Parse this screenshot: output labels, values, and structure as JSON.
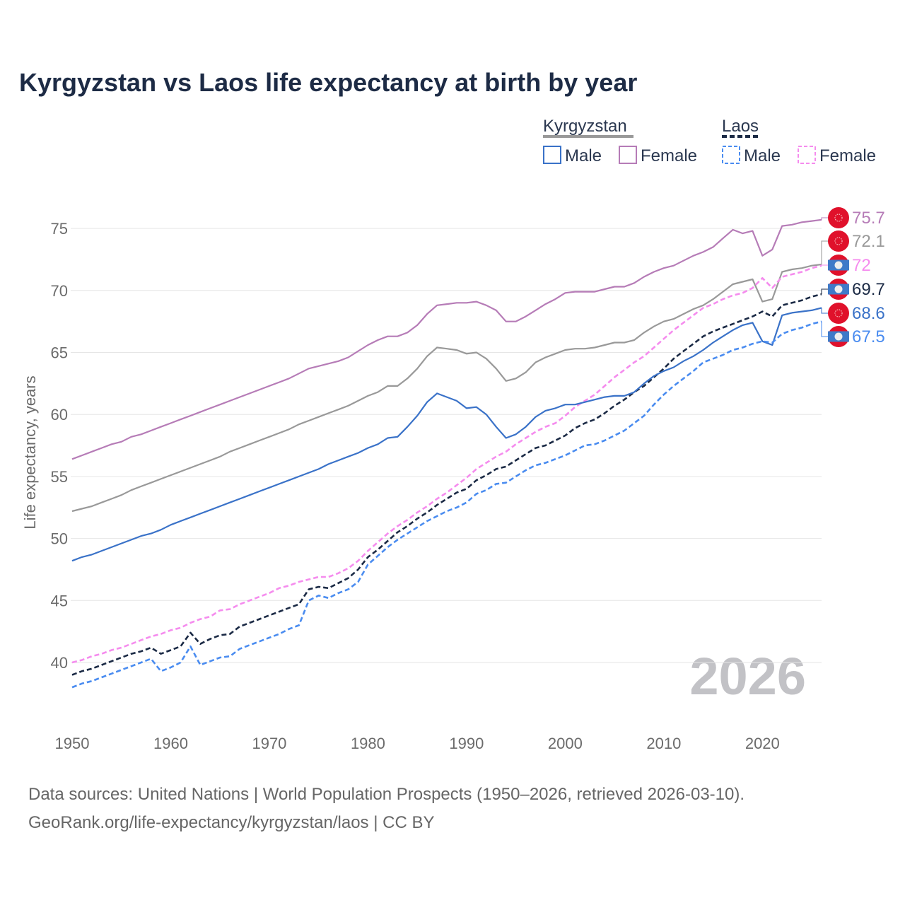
{
  "chart_data": {
    "type": "line",
    "title": "Kyrgyzstan vs Laos life expectancy at birth by year",
    "xlabel": "",
    "ylabel": "Life expectancy, years",
    "xlim": [
      1950,
      2026
    ],
    "ylim": [
      35.5,
      78
    ],
    "x_start": 1950,
    "x_ticks": [
      "1950",
      "1960",
      "1970",
      "1980",
      "1990",
      "2000",
      "2010",
      "2020"
    ],
    "y_ticks": [
      "40",
      "45",
      "50",
      "55",
      "60",
      "65",
      "70",
      "75"
    ],
    "grid": true,
    "watermark_year": "2026",
    "legend": {
      "placement": "top-right",
      "groups": [
        {
          "country": "Kyrgyzstan",
          "male": "Male",
          "female": "Female"
        },
        {
          "country": "Laos",
          "male": "Male",
          "female": "Female"
        }
      ]
    },
    "series": [
      {
        "name": "Kyrgyzstan Female",
        "color": "#b67cb7",
        "dashed": false,
        "flag": "kyrgyzstan",
        "end_label": "75.7",
        "values": [
          56.4,
          56.7,
          57.0,
          57.3,
          57.6,
          57.8,
          58.2,
          58.4,
          58.7,
          59.0,
          59.3,
          59.6,
          59.9,
          60.2,
          60.5,
          60.8,
          61.1,
          61.4,
          61.7,
          62.0,
          62.3,
          62.6,
          62.9,
          63.3,
          63.7,
          63.9,
          64.1,
          64.3,
          64.6,
          65.1,
          65.6,
          66.0,
          66.3,
          66.3,
          66.6,
          67.2,
          68.1,
          68.8,
          68.9,
          69.0,
          69.0,
          69.1,
          68.8,
          68.4,
          67.5,
          67.5,
          67.9,
          68.4,
          68.9,
          69.3,
          69.8,
          69.9,
          69.9,
          69.9,
          70.1,
          70.3,
          70.3,
          70.6,
          71.1,
          71.5,
          71.8,
          72.0,
          72.4,
          72.8,
          73.1,
          73.5,
          74.2,
          74.9,
          74.6,
          74.8,
          72.8,
          73.3,
          75.2,
          75.3,
          75.5,
          75.6,
          75.7
        ]
      },
      {
        "name": "Kyrgyzstan Total",
        "color": "#999999",
        "dashed": false,
        "flag": "kyrgyzstan",
        "end_label": "72.1",
        "values": [
          52.2,
          52.4,
          52.6,
          52.9,
          53.2,
          53.5,
          53.9,
          54.2,
          54.5,
          54.8,
          55.1,
          55.4,
          55.7,
          56.0,
          56.3,
          56.6,
          57.0,
          57.3,
          57.6,
          57.9,
          58.2,
          58.5,
          58.8,
          59.2,
          59.5,
          59.8,
          60.1,
          60.4,
          60.7,
          61.1,
          61.5,
          61.8,
          62.3,
          62.3,
          62.9,
          63.7,
          64.7,
          65.4,
          65.3,
          65.2,
          64.9,
          65.0,
          64.5,
          63.7,
          62.7,
          62.9,
          63.4,
          64.2,
          64.6,
          64.9,
          65.2,
          65.3,
          65.3,
          65.4,
          65.6,
          65.8,
          65.8,
          66.0,
          66.6,
          67.1,
          67.5,
          67.7,
          68.1,
          68.5,
          68.8,
          69.3,
          69.9,
          70.5,
          70.7,
          70.9,
          69.1,
          69.3,
          71.5,
          71.7,
          71.8,
          72.0,
          72.1
        ]
      },
      {
        "name": "Laos Female",
        "color": "#f58cee",
        "dashed": true,
        "flag": "laos",
        "end_label": "72",
        "values": [
          40.0,
          40.2,
          40.5,
          40.7,
          41.0,
          41.2,
          41.5,
          41.8,
          42.1,
          42.3,
          42.6,
          42.8,
          43.2,
          43.5,
          43.7,
          44.2,
          44.3,
          44.7,
          45.0,
          45.3,
          45.6,
          46.0,
          46.2,
          46.5,
          46.7,
          46.9,
          46.9,
          47.2,
          47.6,
          48.2,
          49.0,
          49.7,
          50.4,
          51.0,
          51.5,
          52.1,
          52.6,
          53.2,
          53.7,
          54.3,
          54.9,
          55.6,
          56.1,
          56.6,
          57.0,
          57.6,
          58.1,
          58.6,
          59.0,
          59.3,
          59.9,
          60.6,
          61.1,
          61.6,
          62.3,
          63.0,
          63.6,
          64.2,
          64.7,
          65.4,
          66.1,
          66.8,
          67.4,
          68.0,
          68.6,
          68.9,
          69.3,
          69.6,
          69.8,
          70.2,
          71.0,
          70.2,
          71.1,
          71.3,
          71.5,
          71.8,
          72.0
        ]
      },
      {
        "name": "Laos Total",
        "color": "#1b2a45",
        "dashed": true,
        "flag": "laos",
        "end_label": "69.7",
        "values": [
          39.0,
          39.3,
          39.5,
          39.8,
          40.1,
          40.4,
          40.7,
          40.9,
          41.2,
          40.7,
          41.0,
          41.3,
          42.4,
          41.5,
          41.9,
          42.2,
          42.3,
          42.9,
          43.2,
          43.5,
          43.8,
          44.1,
          44.4,
          44.7,
          45.9,
          46.1,
          46.0,
          46.4,
          46.8,
          47.5,
          48.5,
          49.1,
          49.8,
          50.5,
          51.0,
          51.6,
          52.1,
          52.7,
          53.2,
          53.7,
          54.0,
          54.7,
          55.1,
          55.6,
          55.8,
          56.3,
          56.8,
          57.3,
          57.5,
          57.9,
          58.3,
          58.9,
          59.3,
          59.6,
          60.1,
          60.7,
          61.2,
          61.8,
          62.3,
          63.0,
          63.7,
          64.5,
          65.1,
          65.7,
          66.3,
          66.7,
          67.0,
          67.3,
          67.6,
          67.9,
          68.3,
          67.9,
          68.8,
          69.0,
          69.2,
          69.5,
          69.7
        ]
      },
      {
        "name": "Kyrgyzstan Male",
        "color": "#3a72c8",
        "dashed": false,
        "flag": "kyrgyzstan",
        "end_label": "68.6",
        "values": [
          48.2,
          48.5,
          48.7,
          49.0,
          49.3,
          49.6,
          49.9,
          50.2,
          50.4,
          50.7,
          51.1,
          51.4,
          51.7,
          52.0,
          52.3,
          52.6,
          52.9,
          53.2,
          53.5,
          53.8,
          54.1,
          54.4,
          54.7,
          55.0,
          55.3,
          55.6,
          56.0,
          56.3,
          56.6,
          56.9,
          57.3,
          57.6,
          58.1,
          58.2,
          59.0,
          59.9,
          61.0,
          61.7,
          61.4,
          61.1,
          60.5,
          60.6,
          60.0,
          59.0,
          58.1,
          58.4,
          59.0,
          59.8,
          60.3,
          60.5,
          60.8,
          60.8,
          61.0,
          61.2,
          61.4,
          61.5,
          61.5,
          61.8,
          62.5,
          63.1,
          63.5,
          63.8,
          64.3,
          64.7,
          65.2,
          65.8,
          66.3,
          66.8,
          67.2,
          67.4,
          65.9,
          65.6,
          68.0,
          68.2,
          68.3,
          68.4,
          68.6
        ]
      },
      {
        "name": "Laos Male",
        "color": "#4a8cf0",
        "dashed": true,
        "flag": "laos",
        "end_label": "67.5",
        "values": [
          38.0,
          38.3,
          38.5,
          38.8,
          39.1,
          39.4,
          39.7,
          40.0,
          40.3,
          39.3,
          39.6,
          40.0,
          41.3,
          39.8,
          40.1,
          40.4,
          40.5,
          41.1,
          41.4,
          41.7,
          42.0,
          42.3,
          42.7,
          43.0,
          45.0,
          45.4,
          45.2,
          45.6,
          45.9,
          46.5,
          47.9,
          48.6,
          49.3,
          49.9,
          50.4,
          50.9,
          51.4,
          51.8,
          52.2,
          52.5,
          52.9,
          53.6,
          53.9,
          54.4,
          54.5,
          55.0,
          55.5,
          55.9,
          56.1,
          56.4,
          56.7,
          57.1,
          57.5,
          57.6,
          57.9,
          58.3,
          58.7,
          59.3,
          59.9,
          60.8,
          61.6,
          62.3,
          62.9,
          63.5,
          64.2,
          64.5,
          64.8,
          65.2,
          65.4,
          65.7,
          65.9,
          65.8,
          66.5,
          66.8,
          67.0,
          67.3,
          67.5
        ]
      }
    ]
  },
  "source": {
    "line1": "Data sources: United Nations | World Population Prospects (1950–2026, retrieved 2026-03-10).",
    "line2": "GeoRank.org/life-expectancy/kyrgyzstan/laos | CC BY"
  }
}
